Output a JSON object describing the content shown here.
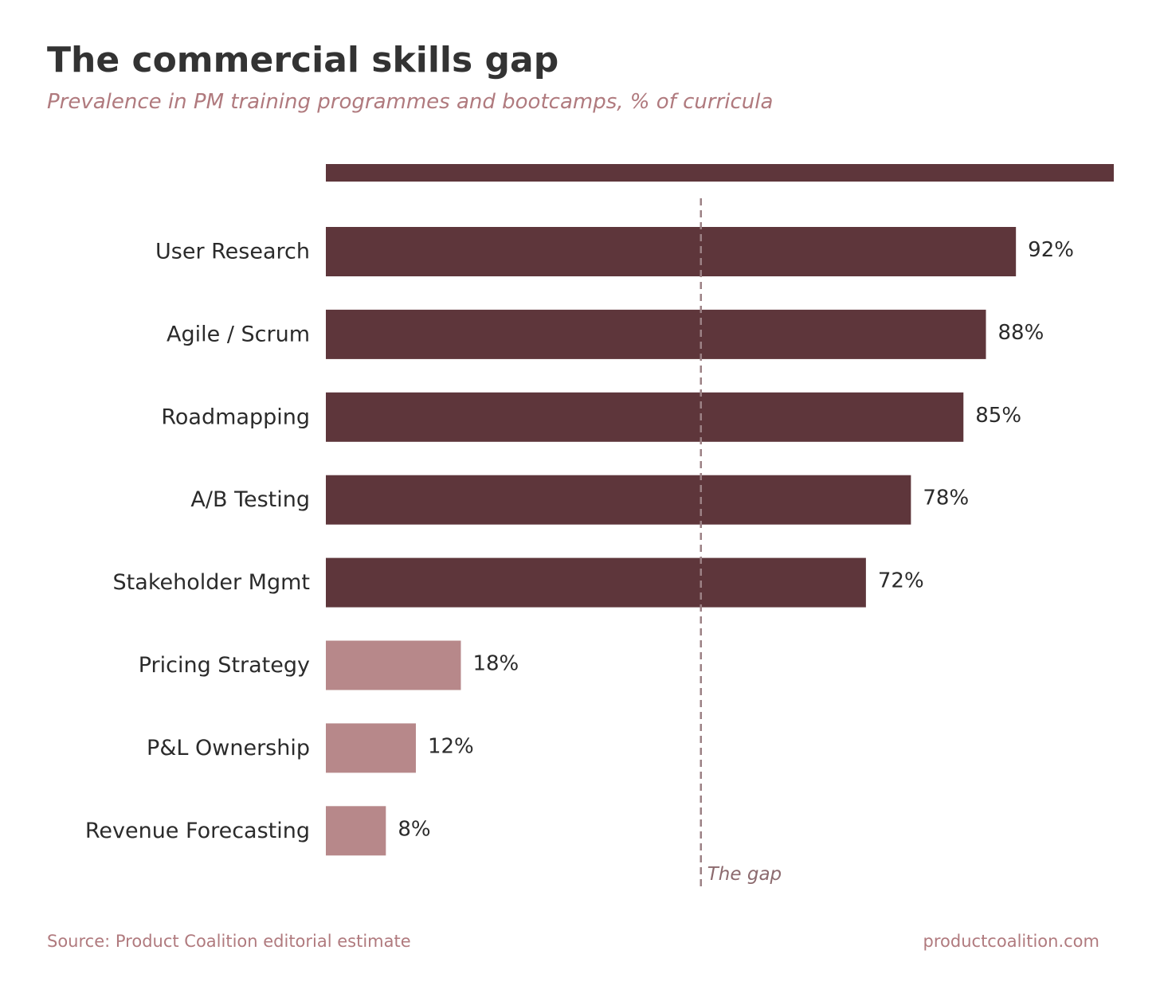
{
  "title": "The commercial skills gap",
  "subtitle": "Prevalence in PM training programmes and bootcamps, % of curricula",
  "footer": {
    "source": "Source: Product Coalition editorial estimate",
    "site": "productcoalition.com"
  },
  "colors": {
    "dark_bar": "#5e363b",
    "light_bar": "#b7888a",
    "gap_line": "#9c8185"
  },
  "chart_data": {
    "type": "bar",
    "orientation": "horizontal",
    "categories": [
      "User Research",
      "Agile / Scrum",
      "Roadmapping",
      "A/B Testing",
      "Stakeholder Mgmt",
      "Pricing Strategy",
      "P&L Ownership",
      "Revenue Forecasting"
    ],
    "values": [
      92,
      88,
      85,
      78,
      72,
      18,
      12,
      8
    ],
    "value_labels": [
      "92%",
      "88%",
      "85%",
      "78%",
      "72%",
      "18%",
      "12%",
      "8%"
    ],
    "groups": [
      "dark",
      "dark",
      "dark",
      "dark",
      "dark",
      "light",
      "light",
      "light"
    ],
    "xlim": [
      0,
      105
    ],
    "reference_line": {
      "x": 50,
      "label": "The gap"
    },
    "title": "The commercial skills gap",
    "subtitle": "Prevalence in PM training programmes and bootcamps, % of curricula",
    "grid": false,
    "legend": "none"
  }
}
